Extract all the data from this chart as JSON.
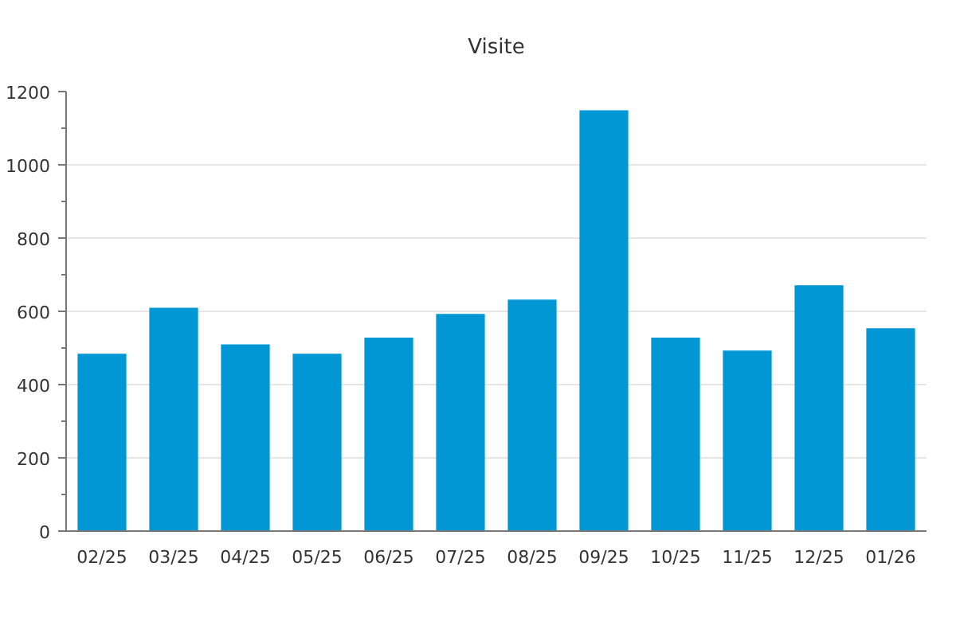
{
  "chart_data": {
    "type": "bar",
    "title": "Visite",
    "categories": [
      "02/25",
      "03/25",
      "04/25",
      "05/25",
      "06/25",
      "07/25",
      "08/25",
      "09/25",
      "10/25",
      "11/25",
      "12/25",
      "01/26"
    ],
    "values": [
      484,
      610,
      510,
      484,
      528,
      593,
      632,
      1149,
      528,
      493,
      671,
      554
    ],
    "color": "#0097d4",
    "ylim": [
      0,
      1200
    ],
    "yticks": [
      0,
      {
        "value": 100,
        "label": null
      },
      200,
      {
        "value": 300,
        "label": null
      },
      400,
      {
        "value": 500,
        "label": null
      },
      600,
      {
        "value": 700,
        "label": null
      },
      800,
      {
        "value": 900,
        "label": null
      },
      1000,
      {
        "value": 1100,
        "label": null
      },
      1200
    ],
    "grid": "y"
  }
}
